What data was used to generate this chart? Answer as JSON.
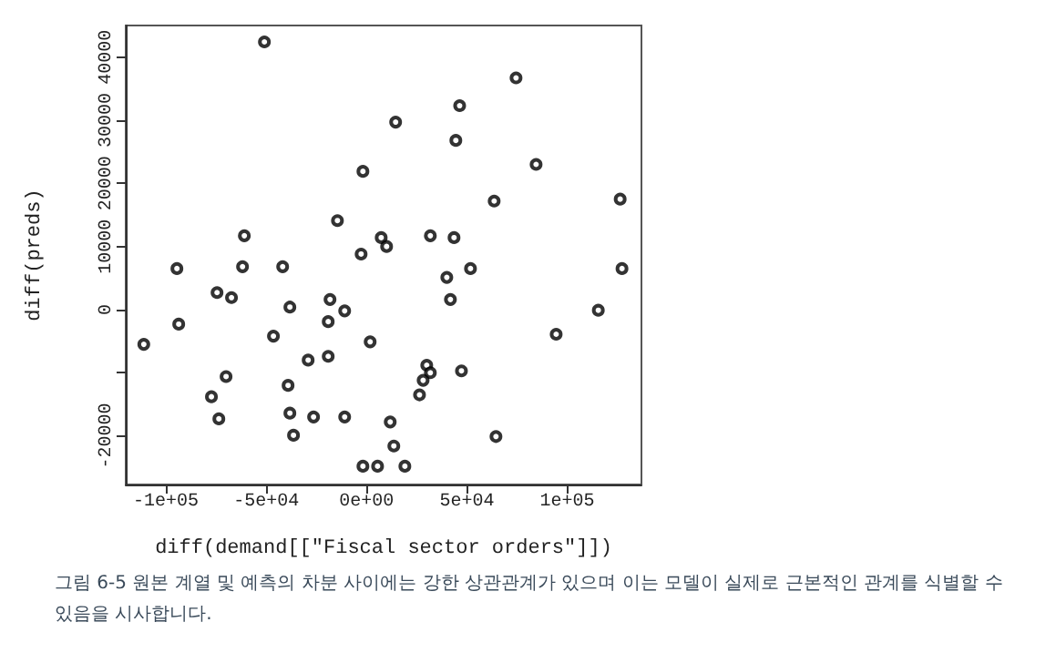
{
  "chart_data": {
    "type": "scatter",
    "xlabel": "diff(demand[[\"Fiscal sector orders\"]])",
    "ylabel": "diff(preds)",
    "marker": "circle",
    "xlim": [
      -120000,
      137000
    ],
    "ylim": [
      -27700,
      45000
    ],
    "xticks": [
      {
        "value": -100000,
        "label": "-1e+05"
      },
      {
        "value": -50000,
        "label": "-5e+04"
      },
      {
        "value": 0,
        "label": "0e+00"
      },
      {
        "value": 50000,
        "label": "5e+04"
      },
      {
        "value": 100000,
        "label": "1e+05"
      }
    ],
    "yticks": [
      {
        "value": -20000,
        "label": "-20000"
      },
      {
        "value": -10000,
        "label": null
      },
      0,
      10000,
      20000,
      30000,
      40000
    ],
    "series": [
      {
        "color": "#000000",
        "x": [
          -111000,
          -94500,
          -93600,
          -74500,
          -67300,
          -61800,
          -41800,
          -38200,
          -18200,
          -19100,
          -10900,
          -46400,
          1800,
          -29100,
          -19100,
          -70000,
          -77300,
          -39100,
          -73600,
          -38200,
          -26400,
          -10900,
          -36400,
          -1800,
          5500,
          -50900,
          -1800,
          -14500,
          -60900,
          -2700,
          7300,
          74500,
          46400,
          14500,
          44500,
          84500,
          63600,
          126400,
          10000,
          31800,
          43600,
          51800,
          127300,
          40000,
          41800,
          94500,
          115500,
          30000,
          31800,
          28200,
          26400,
          47300,
          11800,
          13600,
          19100,
          64500
        ],
        "values": [
          -5500,
          6500,
          -2300,
          2700,
          1900,
          6800,
          6800,
          400,
          1600,
          -1900,
          -200,
          -4200,
          -5100,
          -8000,
          -7400,
          -10600,
          -13800,
          -12000,
          -17300,
          -16400,
          -17000,
          -17000,
          -19900,
          -24800,
          -24800,
          42400,
          21900,
          14100,
          11700,
          8800,
          11400,
          36700,
          32300,
          29700,
          26800,
          23000,
          17200,
          17500,
          10000,
          11700,
          11400,
          6500,
          6500,
          5100,
          1600,
          -3900,
          -100,
          -8800,
          -10000,
          -11200,
          -13500,
          -9700,
          -17800,
          -21600,
          -24800,
          -20100
        ]
      }
    ],
    "annotations": [
      "그림 6-5 원본 계열 및 예측의 차분 사이에는 강한 상관관계가 있으며 이는 모델이 실제로 근본적인 관계를 식별할 수 있음을 시사합니다."
    ]
  }
}
